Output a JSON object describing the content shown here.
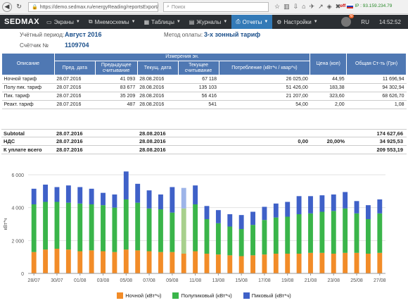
{
  "browser": {
    "url": "https://demo.sedmax.ru/energyReading/reportsExport/",
    "search_placeholder": "Поиск",
    "off_label": "off",
    "ip_label": "IP : 93.159.234.79"
  },
  "menu": {
    "logo": "SEDMAX",
    "items": [
      {
        "label": "Экраны",
        "icon": "screen-icon"
      },
      {
        "label": "Мнемосхемы",
        "icon": "diagram-icon"
      },
      {
        "label": "Таблицы",
        "icon": "table-icon"
      },
      {
        "label": "Журналы",
        "icon": "journal-icon"
      },
      {
        "label": "Отчеты",
        "icon": "print-icon"
      },
      {
        "label": "Настройки",
        "icon": "gear-icon"
      }
    ],
    "notif_count": "6",
    "lang": "RU",
    "time": "14:52:52"
  },
  "info": {
    "period_label": "Учётный период:",
    "period_value": "Август 2016",
    "payment_label": "Метод оплаты:",
    "payment_value": "3-х зонный тариф",
    "meter_label": "Счётчик №",
    "meter_value": "1109704"
  },
  "table": {
    "head": {
      "desc": "Описание",
      "group": "Измерения эн.",
      "prev_date": "Пред. дата",
      "prev_read": "Предыдущее считывание",
      "cur_date": "Текущ. дата",
      "cur_read": "Текущее считывание",
      "consumption": "Потребление (кВт*ч / квар*ч)",
      "price": "Цена (коп)",
      "total": "Общая Ст-ть (Грн)"
    },
    "rows": [
      [
        "Ночной тариф",
        "28.07.2016",
        "41 093",
        "28.08.2016",
        "67 118",
        "26 025,00",
        "44,95",
        "11 696,94"
      ],
      [
        "Полу пик. тариф",
        "28.07.2016",
        "83 677",
        "28.08.2016",
        "135 103",
        "51 426,00",
        "183,38",
        "94 302,94"
      ],
      [
        "Пик. тариф",
        "28.07.2016",
        "35 209",
        "28.08.2016",
        "56 416",
        "21 207,00",
        "323,60",
        "68 626,70"
      ],
      [
        "Реакт. тариф",
        "28.07.2016",
        "487",
        "28.08.2016",
        "541",
        "54,00",
        "2,00",
        "1,08"
      ]
    ]
  },
  "summary": {
    "subtotal": {
      "label": "Subtotal",
      "prev": "28.07.2016",
      "cur": "28.08.2016",
      "cons": "",
      "price": "",
      "total": "174 627,66"
    },
    "vat": {
      "label": "НДС",
      "prev": "28.07.2016",
      "cur": "28.08.2016",
      "cons": "0,00",
      "price": "20,00%",
      "total": "34 925,53"
    },
    "due": {
      "label": "К уплате всего",
      "prev": "28.07.2016",
      "cur": "28.08.2016",
      "cons": "",
      "price": "",
      "total": "209 553,19"
    }
  },
  "chart_data": {
    "type": "bar",
    "stacked": true,
    "ylabel": "кВт*ч",
    "ylim": [
      0,
      6000
    ],
    "yticks": [
      "0",
      "2 000",
      "4 000",
      "6 000"
    ],
    "xtick_labels": [
      "28/07",
      "30/07",
      "01/08",
      "03/08",
      "05/08",
      "07/08",
      "09/08",
      "11/08",
      "13/08",
      "15/08",
      "17/08",
      "19/08",
      "21/08",
      "23/08",
      "25/08",
      "27/08"
    ],
    "categories": [
      "28/07",
      "29/07",
      "30/07",
      "31/07",
      "01/08",
      "02/08",
      "03/08",
      "04/08",
      "05/08",
      "06/08",
      "07/08",
      "08/08",
      "09/08",
      "10/08",
      "11/08",
      "12/08",
      "13/08",
      "14/08",
      "15/08",
      "16/08",
      "17/08",
      "18/08",
      "19/08",
      "20/08",
      "21/08",
      "22/08",
      "23/08",
      "24/08",
      "25/08",
      "26/08",
      "27/08"
    ],
    "highlight_index": 13,
    "highlight_colors": [
      "#a8d08d",
      "#9db4e8"
    ],
    "series": [
      {
        "name": "Ночной (кВт*ч)",
        "color": "#f28c28",
        "values": [
          1300,
          1450,
          1500,
          1450,
          1350,
          1400,
          1350,
          1300,
          1450,
          1400,
          1350,
          1300,
          1300,
          1200,
          1350,
          1200,
          1150,
          1100,
          1050,
          1100,
          1150,
          1200,
          1200,
          1200,
          1250,
          1250,
          1200,
          1250,
          1250,
          1200,
          1250
        ]
      },
      {
        "name": "Полупиковый (кВт*ч)",
        "color": "#3ab54a",
        "values": [
          2900,
          2900,
          2850,
          2850,
          2900,
          2800,
          2800,
          2700,
          3050,
          2900,
          2600,
          2600,
          2400,
          2750,
          2850,
          2100,
          1900,
          1750,
          1650,
          1850,
          2100,
          2200,
          2250,
          2400,
          2400,
          2500,
          2600,
          2700,
          2400,
          2100,
          2400
        ]
      },
      {
        "name": "Пиковый (кВт*ч)",
        "color": "#3f61c8",
        "values": [
          950,
          1050,
          900,
          1050,
          1000,
          950,
          750,
          800,
          1700,
          1150,
          1100,
          900,
          1550,
          1250,
          1150,
          800,
          800,
          750,
          850,
          800,
          800,
          850,
          900,
          1100,
          1050,
          1000,
          1000,
          1000,
          750,
          850,
          850
        ]
      }
    ]
  }
}
